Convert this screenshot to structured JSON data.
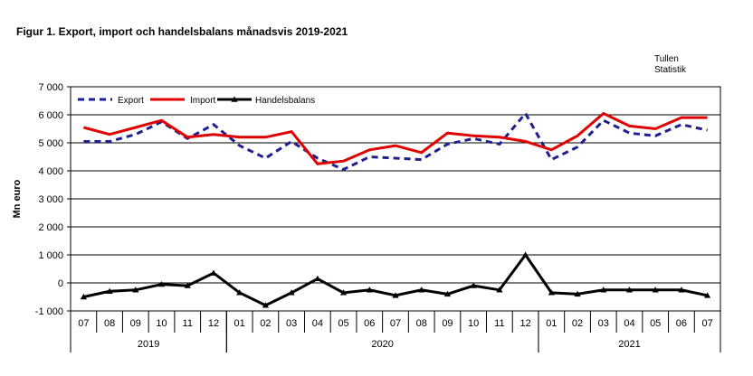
{
  "header": {
    "title": "Figur  1. Export, import och handelsbalans månadsvis 2019-2021",
    "source_line1": "Tullen",
    "source_line2": "Statistik"
  },
  "chart_data": {
    "type": "line",
    "title": "Figur  1. Export, import och handelsbalans månadsvis 2019-2021",
    "ylabel": "Mn euro",
    "xlabel": "",
    "ylim": [
      -1000,
      7000
    ],
    "yticks": [
      -1000,
      0,
      1000,
      2000,
      3000,
      4000,
      5000,
      6000,
      7000
    ],
    "ytick_labels": [
      "-1 000",
      "0",
      "1 000",
      "2 000",
      "3 000",
      "4 000",
      "5 000",
      "6 000",
      "7 000"
    ],
    "grid": true,
    "legend_position": "top-left",
    "categories": [
      "07",
      "08",
      "09",
      "10",
      "11",
      "12",
      "01",
      "02",
      "03",
      "04",
      "05",
      "06",
      "07",
      "08",
      "09",
      "10",
      "11",
      "12",
      "01",
      "02",
      "03",
      "04",
      "05",
      "06",
      "07"
    ],
    "year_groups": [
      {
        "label": "2019",
        "start": 0,
        "end": 5
      },
      {
        "label": "2020",
        "start": 6,
        "end": 17
      },
      {
        "label": "2021",
        "start": 18,
        "end": 24
      }
    ],
    "series": [
      {
        "name": "Export",
        "color": "#1F1F8F",
        "style": "dashed",
        "values": [
          5050,
          5050,
          5300,
          5750,
          5150,
          5650,
          4900,
          4450,
          5050,
          4450,
          4050,
          4500,
          4450,
          4400,
          4950,
          5150,
          4950,
          6050,
          4400,
          4850,
          5800,
          5350,
          5250,
          5650,
          5450
        ]
      },
      {
        "name": "Import",
        "color": "#E00000",
        "style": "solid",
        "values": [
          5550,
          5300,
          5550,
          5800,
          5200,
          5300,
          5200,
          5200,
          5400,
          4250,
          4350,
          4750,
          4900,
          4650,
          5350,
          5250,
          5200,
          5050,
          4750,
          5250,
          6050,
          5600,
          5500,
          5900,
          5900
        ]
      },
      {
        "name": "Handelsbalans",
        "color": "#000000",
        "style": "solid-triangle",
        "values": [
          -500,
          -300,
          -250,
          -50,
          -100,
          350,
          -350,
          -800,
          -350,
          150,
          -350,
          -250,
          -450,
          -250,
          -400,
          -100,
          -250,
          1000,
          -350,
          -400,
          -250,
          -250,
          -250,
          -250,
          -450
        ]
      }
    ]
  }
}
